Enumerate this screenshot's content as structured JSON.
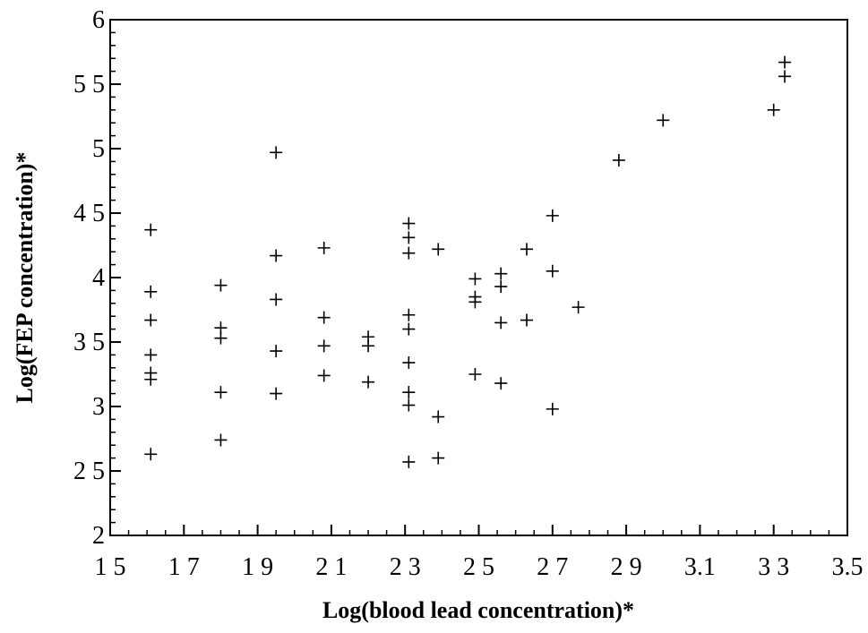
{
  "chart_data": {
    "type": "scatter",
    "xlabel": "Log(blood lead concentration)*",
    "ylabel": "Log(FEP concentration)*",
    "color": "#000000",
    "xlim": [
      1.5,
      3.5
    ],
    "ylim": [
      2,
      6
    ],
    "xticks": [
      {
        "value": 1.5,
        "label": "1 5"
      },
      {
        "value": 1.7,
        "label": "1 7"
      },
      {
        "value": 1.9,
        "label": "1 9"
      },
      {
        "value": 2.1,
        "label": "2 1"
      },
      {
        "value": 2.3,
        "label": "2 3"
      },
      {
        "value": 2.5,
        "label": "2 5"
      },
      {
        "value": 2.7,
        "label": "2 7"
      },
      {
        "value": 2.9,
        "label": "2 9"
      },
      3.1,
      {
        "value": 3.3,
        "label": "3 3"
      },
      3.5
    ],
    "yticks": [
      2,
      {
        "value": 2.5,
        "label": "2 5"
      },
      3,
      {
        "value": 3.5,
        "label": "3 5"
      },
      4,
      {
        "value": 4.5,
        "label": "4 5"
      },
      5,
      {
        "value": 5.5,
        "label": "5 5"
      },
      6
    ],
    "x": [
      1.61,
      1.61,
      1.61,
      1.61,
      1.61,
      1.61,
      1.61,
      1.8,
      1.8,
      1.8,
      1.8,
      1.8,
      1.95,
      1.95,
      1.95,
      1.95,
      1.95,
      2.08,
      2.08,
      2.08,
      2.08,
      2.2,
      2.2,
      2.2,
      2.31,
      2.31,
      2.31,
      2.31,
      2.31,
      2.31,
      2.31,
      2.31,
      2.31,
      2.39,
      2.39,
      2.39,
      2.49,
      2.49,
      2.49,
      2.49,
      2.56,
      2.56,
      2.56,
      2.56,
      2.63,
      2.63,
      2.7,
      2.7,
      2.7,
      2.77,
      2.88,
      3.0,
      3.3,
      3.33,
      3.33
    ],
    "values": [
      4.37,
      3.89,
      3.67,
      3.4,
      3.26,
      3.21,
      2.63,
      3.94,
      3.61,
      3.53,
      3.11,
      2.74,
      4.97,
      4.17,
      3.83,
      3.43,
      3.1,
      4.23,
      3.69,
      3.47,
      3.24,
      3.54,
      3.47,
      3.19,
      4.42,
      4.31,
      4.19,
      3.71,
      3.6,
      3.34,
      3.11,
      3.01,
      2.57,
      4.22,
      2.92,
      2.6,
      3.99,
      3.85,
      3.81,
      3.25,
      4.03,
      3.93,
      3.65,
      3.18,
      4.22,
      3.67,
      4.48,
      4.05,
      2.98,
      3.77,
      4.91,
      5.22,
      5.3,
      5.67,
      5.56
    ]
  }
}
